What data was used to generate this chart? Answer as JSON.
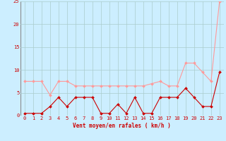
{
  "background_color": "#cceeff",
  "grid_color": "#aacccc",
  "xlabel": "Vent moyen/en rafales ( km/h )",
  "xlabel_color": "#cc0000",
  "xlim_min": -0.5,
  "xlim_max": 23.5,
  "ylim_min": 0,
  "ylim_max": 25,
  "yticks": [
    0,
    5,
    10,
    15,
    20,
    25
  ],
  "xticks": [
    0,
    1,
    2,
    3,
    4,
    5,
    6,
    7,
    8,
    9,
    10,
    11,
    12,
    13,
    14,
    15,
    16,
    17,
    18,
    19,
    20,
    21,
    22,
    23
  ],
  "mean_wind": [
    0.5,
    0.5,
    0.5,
    2,
    4,
    2,
    4,
    4,
    4,
    0.5,
    0.5,
    2.5,
    0.5,
    4,
    0.5,
    0.5,
    4,
    4,
    4,
    6,
    4,
    2,
    2,
    9.5
  ],
  "gust_wind": [
    7.5,
    7.5,
    7.5,
    4.5,
    7.5,
    7.5,
    6.5,
    6.5,
    6.5,
    6.5,
    6.5,
    6.5,
    6.5,
    6.5,
    6.5,
    7,
    7.5,
    6.5,
    6.5,
    11.5,
    11.5,
    9.5,
    7.5,
    25
  ],
  "mean_color": "#cc0000",
  "gust_color": "#ff9999",
  "line_width": 0.8,
  "marker_size": 2.0,
  "tick_fontsize": 5,
  "xlabel_fontsize": 5.5
}
